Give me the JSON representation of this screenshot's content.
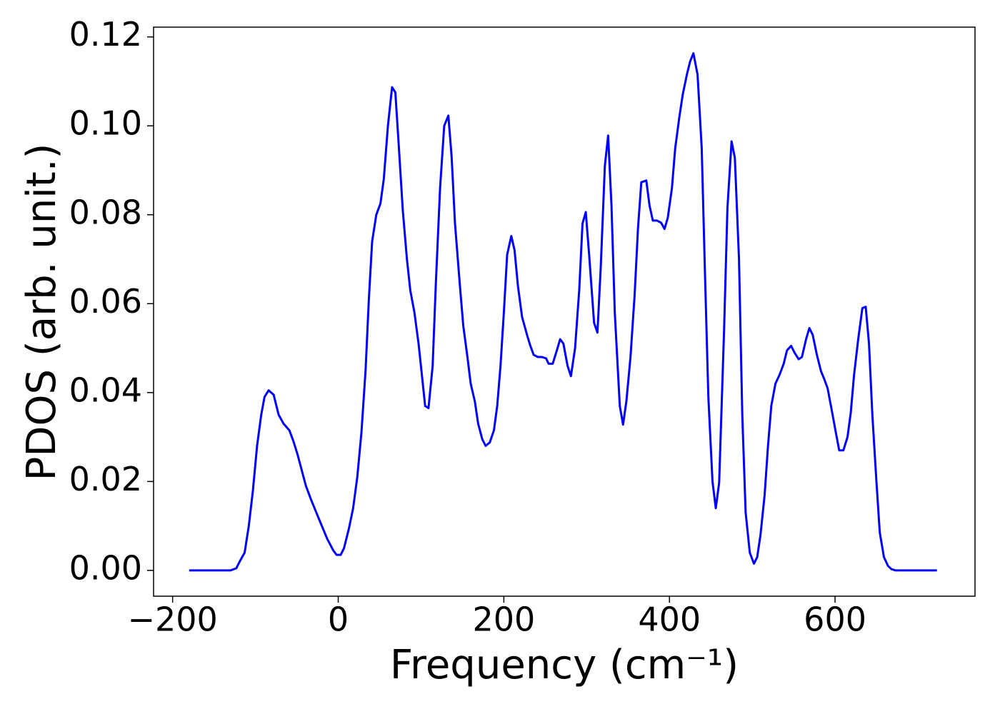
{
  "chart_data": {
    "type": "line",
    "xlabel": "Frequency (cm⁻¹)",
    "ylabel": "PDOS (arb. unit.)",
    "x": [
      -180,
      -130,
      -123,
      -119,
      -113,
      -108,
      -103,
      -98,
      -93,
      -89,
      -84,
      -78,
      -72,
      -66,
      -59,
      -54,
      -49,
      -39,
      -33,
      -22,
      -13,
      -6,
      -2,
      3,
      7,
      13,
      18,
      23,
      28,
      33,
      37,
      41,
      46,
      51,
      55,
      60,
      65,
      69,
      73,
      78,
      83,
      87,
      92,
      97,
      101,
      105,
      109,
      114,
      118,
      123,
      128,
      133,
      137,
      141,
      147,
      151,
      156,
      160,
      165,
      169,
      174,
      178,
      183,
      188,
      192,
      196,
      200,
      204,
      209,
      213,
      217,
      222,
      228,
      232,
      236,
      241,
      246,
      251,
      254,
      259,
      264,
      268,
      272,
      277,
      281,
      286,
      291,
      295,
      299,
      303,
      309,
      313,
      317,
      322,
      326,
      330,
      334,
      340,
      344,
      348,
      353,
      358,
      362,
      366,
      372,
      376,
      380,
      385,
      390,
      394,
      398,
      403,
      407,
      412,
      416,
      421,
      425,
      429,
      434,
      439,
      443,
      447,
      452,
      456,
      460,
      466,
      470,
      475,
      479,
      484,
      488,
      492,
      497,
      502,
      506,
      510,
      515,
      519,
      523,
      528,
      533,
      538,
      542,
      547,
      551,
      556,
      560,
      565,
      569,
      573,
      578,
      583,
      587,
      591,
      595,
      601,
      605,
      610,
      615,
      619,
      623,
      628,
      633,
      637,
      641,
      645,
      650,
      654,
      659,
      664,
      668,
      673,
      723
    ],
    "series": [
      {
        "color": "#0000ff",
        "values": [
          0,
          0,
          0.0005,
          0.002,
          0.004,
          0.01,
          0.018,
          0.028,
          0.035,
          0.039,
          0.0405,
          0.0395,
          0.035,
          0.033,
          0.0315,
          0.029,
          0.026,
          0.019,
          0.016,
          0.011,
          0.007,
          0.0045,
          0.0035,
          0.0035,
          0.005,
          0.0095,
          0.014,
          0.021,
          0.031,
          0.045,
          0.061,
          0.074,
          0.08,
          0.0825,
          0.088,
          0.1,
          0.1087,
          0.1075,
          0.096,
          0.081,
          0.07,
          0.063,
          0.058,
          0.051,
          0.044,
          0.037,
          0.0365,
          0.046,
          0.065,
          0.086,
          0.1,
          0.1023,
          0.093,
          0.078,
          0.064,
          0.055,
          0.048,
          0.042,
          0.038,
          0.033,
          0.0295,
          0.028,
          0.0288,
          0.0315,
          0.037,
          0.046,
          0.058,
          0.071,
          0.0752,
          0.072,
          0.064,
          0.057,
          0.053,
          0.0505,
          0.0485,
          0.048,
          0.048,
          0.0477,
          0.0465,
          0.0465,
          0.0495,
          0.052,
          0.051,
          0.046,
          0.0437,
          0.05,
          0.063,
          0.078,
          0.0806,
          0.071,
          0.0557,
          0.0535,
          0.068,
          0.091,
          0.0978,
          0.082,
          0.058,
          0.037,
          0.0328,
          0.038,
          0.048,
          0.062,
          0.077,
          0.0873,
          0.0877,
          0.082,
          0.0787,
          0.0787,
          0.0782,
          0.0768,
          0.0793,
          0.086,
          0.095,
          0.102,
          0.107,
          0.1115,
          0.1145,
          0.1163,
          0.1115,
          0.095,
          0.066,
          0.039,
          0.02,
          0.014,
          0.0197,
          0.054,
          0.0815,
          0.0965,
          0.0928,
          0.07,
          0.035,
          0.013,
          0.004,
          0.0015,
          0.003,
          0.008,
          0.017,
          0.028,
          0.037,
          0.042,
          0.044,
          0.0465,
          0.0495,
          0.0505,
          0.049,
          0.0475,
          0.048,
          0.052,
          0.0545,
          0.053,
          0.0485,
          0.0448,
          0.043,
          0.041,
          0.037,
          0.031,
          0.027,
          0.027,
          0.03,
          0.0355,
          0.044,
          0.052,
          0.059,
          0.0593,
          0.051,
          0.035,
          0.02,
          0.0085,
          0.003,
          0.001,
          0.0003,
          0,
          0
        ]
      }
    ],
    "xlim": [
      -223,
      769
    ],
    "ylim": [
      -0.0058,
      0.1222
    ],
    "xticks": [
      {
        "value": -200,
        "label": "−200"
      },
      0,
      200,
      400,
      600
    ],
    "yticks": [
      {
        "value": 0,
        "label": "0.00"
      },
      {
        "value": 0.02,
        "label": "0.02"
      },
      {
        "value": 0.04,
        "label": "0.04"
      },
      {
        "value": 0.06,
        "label": "0.06"
      },
      {
        "value": 0.08,
        "label": "0.08"
      },
      {
        "value": 0.1,
        "label": "0.10"
      },
      {
        "value": 0.12,
        "label": "0.12"
      }
    ]
  }
}
